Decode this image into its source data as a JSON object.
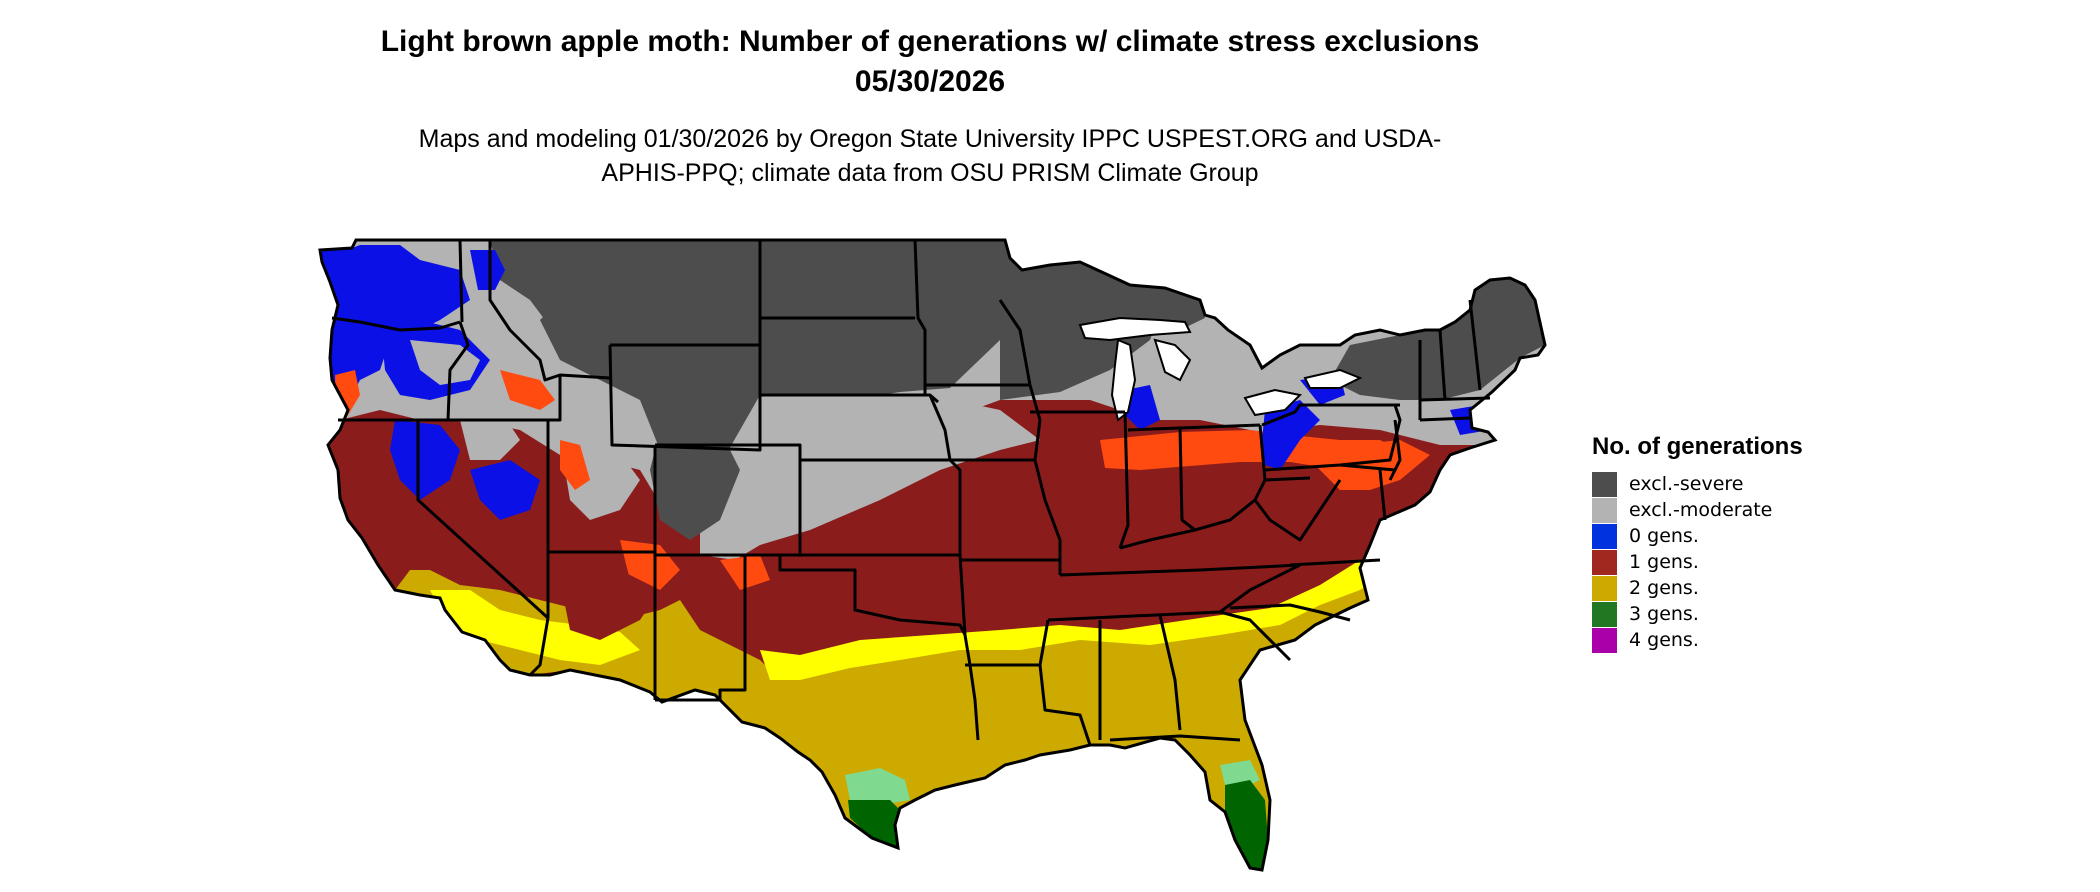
{
  "title": "Light brown apple moth: Number of generations w/ climate stress exclusions 05/30/2026",
  "subtitle": "Maps and modeling 01/30/2026 by Oregon State University IPPC USPEST.ORG and USDA-APHIS-PPQ; climate data from OSU PRISM Climate Group",
  "legend": {
    "title": "No. of generations",
    "items": [
      {
        "label": "excl.-severe",
        "color": "#4d4d4d"
      },
      {
        "label": "excl.-moderate",
        "color": "#b3b3b3"
      },
      {
        "label": "0 gens.",
        "color": "#0033dd"
      },
      {
        "label": "1 gens.",
        "color": "#a0281e"
      },
      {
        "label": "2 gens.",
        "color": "#ccaa00"
      },
      {
        "label": "3 gens.",
        "color": "#227722"
      },
      {
        "label": "4 gens.",
        "color": "#aa00aa"
      }
    ]
  },
  "map_colors": {
    "excl_severe": "#4d4d4d",
    "excl_moderate": "#b3b3b3",
    "gen0": "#0a10e6",
    "gen1": "#8b1c1c",
    "gen1_light": "#ff4a10",
    "gen2": "#ccaa00",
    "gen2_light": "#ffff00",
    "gen3": "#006400",
    "gen3_light": "#7fd98f",
    "gen4": "#ff00ff",
    "borders": "#000000",
    "lakes": "#ffffff"
  }
}
